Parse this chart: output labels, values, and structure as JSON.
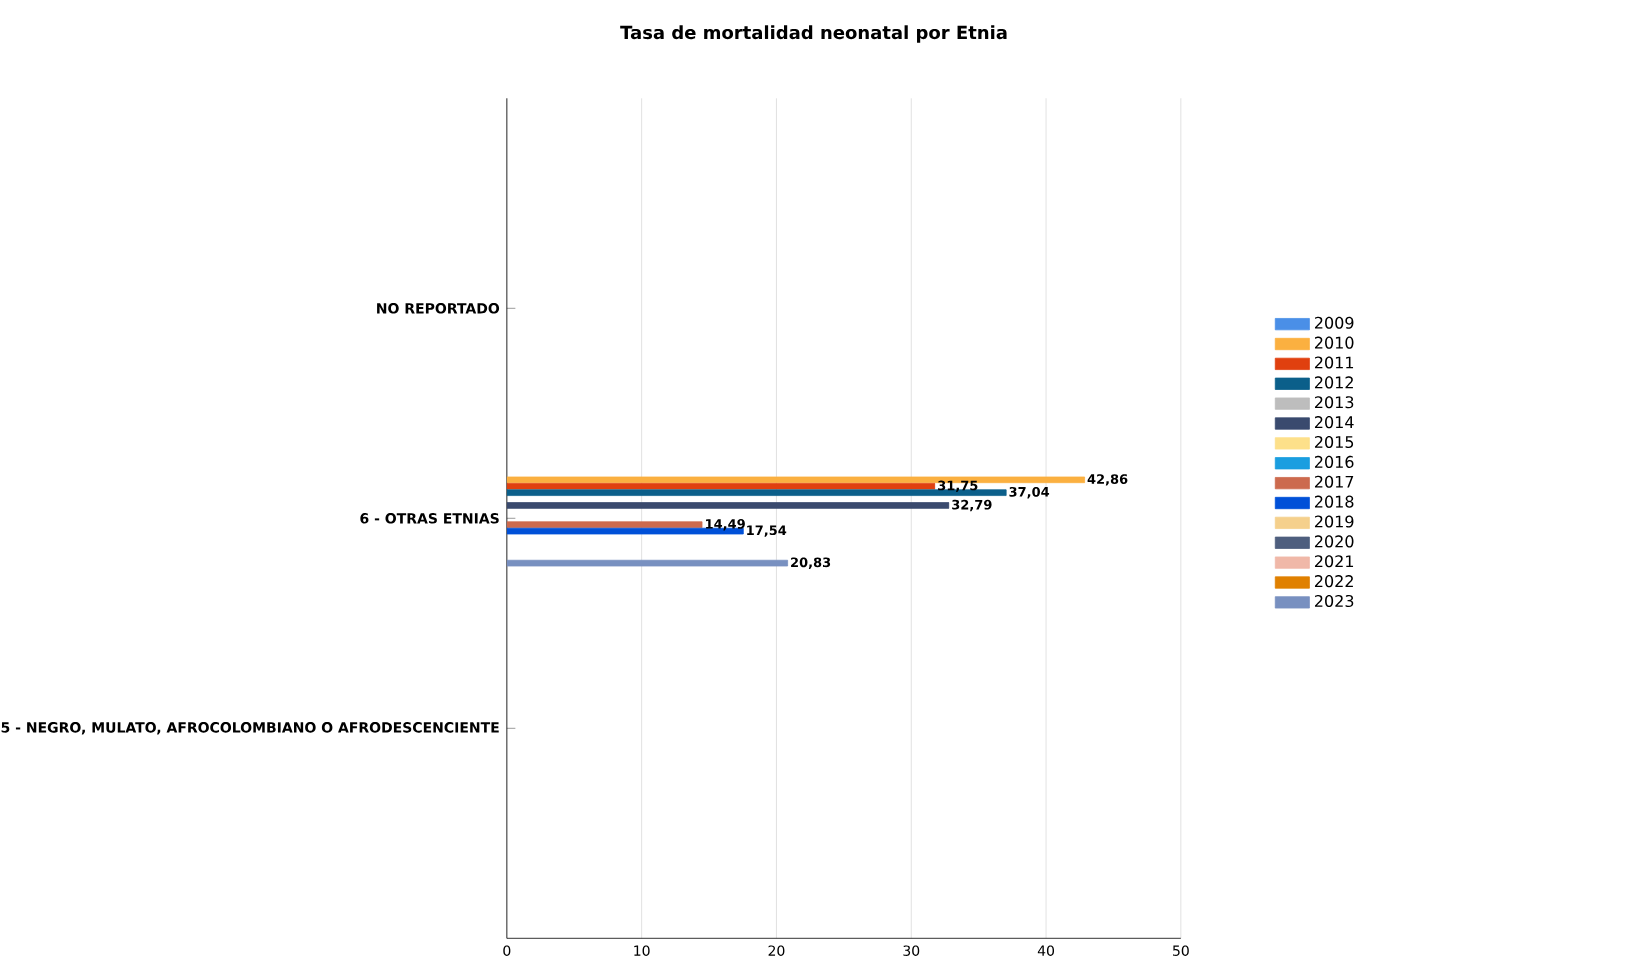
{
  "chart_data": {
    "type": "bar",
    "orientation": "horizontal",
    "title": "Tasa de mortalidad neonatal por Etnia",
    "categories": [
      "NO REPORTADO",
      "6 - OTRAS ETNIAS",
      "5 - NEGRO, MULATO, AFROCOLOMBIANO O AFRODESCENCIENTE"
    ],
    "series": [
      {
        "name": "2009",
        "color": "#4a8fe7",
        "values": [
          null,
          null,
          null
        ]
      },
      {
        "name": "2010",
        "color": "#fbb040",
        "values": [
          null,
          42.86,
          null
        ],
        "value_labels": [
          null,
          "42,86",
          null
        ]
      },
      {
        "name": "2011",
        "color": "#e0400f",
        "values": [
          null,
          31.75,
          null
        ],
        "value_labels": [
          null,
          "31,75",
          null
        ]
      },
      {
        "name": "2012",
        "color": "#0b5f8a",
        "values": [
          null,
          37.04,
          null
        ],
        "value_labels": [
          null,
          "37,04",
          null
        ]
      },
      {
        "name": "2013",
        "color": "#bdbdbd",
        "values": [
          null,
          null,
          null
        ]
      },
      {
        "name": "2014",
        "color": "#3a4a6e",
        "values": [
          null,
          32.79,
          null
        ],
        "value_labels": [
          null,
          "32,79",
          null
        ]
      },
      {
        "name": "2015",
        "color": "#fde08a",
        "values": [
          null,
          null,
          null
        ]
      },
      {
        "name": "2016",
        "color": "#1a9ee0",
        "values": [
          null,
          null,
          null
        ]
      },
      {
        "name": "2017",
        "color": "#cc6a4e",
        "values": [
          null,
          14.49,
          null
        ],
        "value_labels": [
          null,
          "14,49",
          null
        ]
      },
      {
        "name": "2018",
        "color": "#0050d8",
        "values": [
          null,
          17.54,
          null
        ],
        "value_labels": [
          null,
          "17,54",
          null
        ]
      },
      {
        "name": "2019",
        "color": "#f5d08c",
        "values": [
          null,
          null,
          null
        ]
      },
      {
        "name": "2020",
        "color": "#4e5e7e",
        "values": [
          null,
          null,
          null
        ]
      },
      {
        "name": "2021",
        "color": "#f0b8a8",
        "values": [
          null,
          null,
          null
        ]
      },
      {
        "name": "2022",
        "color": "#e08000",
        "values": [
          null,
          null,
          null
        ]
      },
      {
        "name": "2023",
        "color": "#7890c0",
        "values": [
          null,
          20.83,
          null
        ],
        "value_labels": [
          null,
          "20,83",
          null
        ]
      }
    ],
    "xlim": [
      0,
      50
    ],
    "xticks": [
      0,
      10,
      20,
      30,
      40,
      50
    ],
    "grid": "x",
    "legend": "right"
  }
}
